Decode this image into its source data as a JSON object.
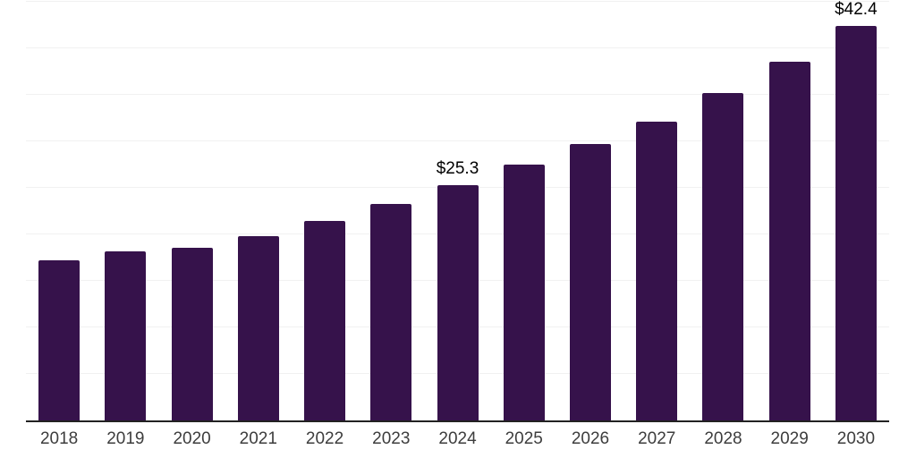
{
  "chart_data": {
    "type": "bar",
    "title": "",
    "xlabel": "",
    "ylabel": "",
    "categories": [
      "2018",
      "2019",
      "2020",
      "2021",
      "2022",
      "2023",
      "2024",
      "2025",
      "2026",
      "2027",
      "2028",
      "2029",
      "2030"
    ],
    "values": [
      17.2,
      18.2,
      18.6,
      19.8,
      21.4,
      23.3,
      25.3,
      27.5,
      29.7,
      32.1,
      35.2,
      38.6,
      42.4
    ],
    "data_labels": {
      "2024": "$25.3",
      "2030": "$42.4"
    },
    "ylim": [
      0,
      45
    ],
    "grid_step": 5,
    "grid": true,
    "legend": false,
    "y_axis_labels_visible": false
  },
  "colors": {
    "bar": "#36124B",
    "gridline": "#F1F1F1",
    "axis_line": "#222222",
    "x_label_text": "#3D3D3D",
    "data_label_text": "#000000",
    "background": "#FFFFFF"
  }
}
